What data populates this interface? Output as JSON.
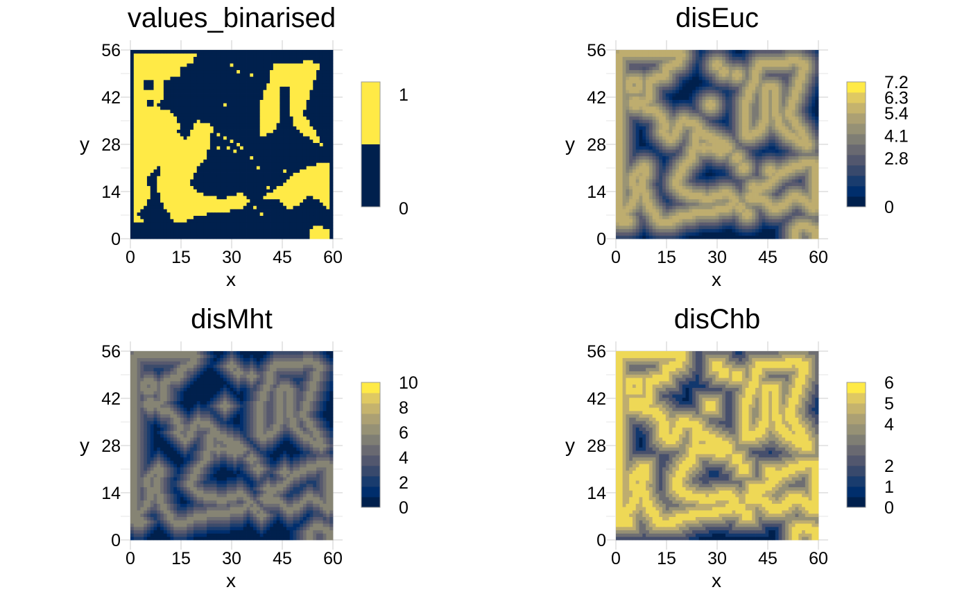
{
  "chart_data": [
    {
      "type": "heatmap",
      "title": "values_binarised",
      "xlabel": "x",
      "ylabel": "y",
      "xlim": [
        0,
        60
      ],
      "ylim": [
        0,
        56
      ],
      "x_ticks": [
        "0",
        "15",
        "30",
        "45",
        "60"
      ],
      "y_ticks": [
        "0",
        "14",
        "28",
        "42",
        "56"
      ],
      "grid": true,
      "legend": {
        "position": "right",
        "range": [
          0,
          1
        ],
        "ticks": [
          {
            "value": 1,
            "label": "1"
          },
          {
            "value": 0,
            "label": "0"
          }
        ],
        "colors": [
          "#00204d",
          "#ffea46"
        ]
      },
      "value_range": [
        0,
        1
      ],
      "binary": true,
      "colormap": "cividis"
    },
    {
      "type": "heatmap",
      "title": "disEuc",
      "xlabel": "x",
      "ylabel": "y",
      "xlim": [
        0,
        60
      ],
      "ylim": [
        0,
        56
      ],
      "x_ticks": [
        "0",
        "15",
        "30",
        "45",
        "60"
      ],
      "y_ticks": [
        "0",
        "14",
        "28",
        "42",
        "56"
      ],
      "grid": true,
      "legend": {
        "position": "right",
        "range": [
          0,
          7.2
        ],
        "ticks": [
          {
            "value": 7.2,
            "label": "7.2"
          },
          {
            "value": 6.3,
            "label": "6.3"
          },
          {
            "value": 5.4,
            "label": "5.4"
          },
          {
            "value": 4.1,
            "label": "4.1"
          },
          {
            "value": 2.8,
            "label": "2.8"
          },
          {
            "value": 0,
            "label": "0"
          }
        ]
      },
      "value_range": [
        0,
        7.2
      ],
      "colormap": "cividis"
    },
    {
      "type": "heatmap",
      "title": "disMht",
      "xlabel": "x",
      "ylabel": "y",
      "xlim": [
        0,
        60
      ],
      "ylim": [
        0,
        56
      ],
      "x_ticks": [
        "0",
        "15",
        "30",
        "45",
        "60"
      ],
      "y_ticks": [
        "0",
        "14",
        "28",
        "42",
        "56"
      ],
      "grid": true,
      "legend": {
        "position": "right",
        "range": [
          0,
          10
        ],
        "ticks": [
          {
            "value": 10,
            "label": "10"
          },
          {
            "value": 8,
            "label": "8"
          },
          {
            "value": 6,
            "label": "6"
          },
          {
            "value": 4,
            "label": "4"
          },
          {
            "value": 2,
            "label": "2"
          },
          {
            "value": 0,
            "label": "0"
          }
        ]
      },
      "value_range": [
        0,
        10
      ],
      "colormap": "cividis"
    },
    {
      "type": "heatmap",
      "title": "disChb",
      "xlabel": "x",
      "ylabel": "y",
      "xlim": [
        0,
        60
      ],
      "ylim": [
        0,
        56
      ],
      "x_ticks": [
        "0",
        "15",
        "30",
        "45",
        "60"
      ],
      "y_ticks": [
        "0",
        "14",
        "28",
        "42",
        "56"
      ],
      "grid": true,
      "legend": {
        "position": "right",
        "range": [
          0,
          6
        ],
        "ticks": [
          {
            "value": 6,
            "label": "6"
          },
          {
            "value": 5,
            "label": "5"
          },
          {
            "value": 4,
            "label": "4"
          },
          {
            "value": 2,
            "label": "2"
          },
          {
            "value": 1,
            "label": "1"
          },
          {
            "value": 0,
            "label": "0"
          }
        ]
      },
      "value_range": [
        0,
        6
      ],
      "colormap": "cividis"
    }
  ]
}
